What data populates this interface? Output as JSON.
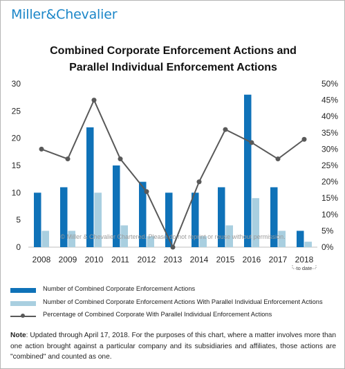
{
  "logo": {
    "name_part1": "Miller",
    "amp": "&",
    "name_part2": "Chevalier"
  },
  "title_line1": "Combined Corporate Enforcement Actions and",
  "title_line2": "Parallel Individual Enforcement Actions",
  "watermark": "© Miller & Chevalier Chartered. Please do not reprint or reuse without permission.",
  "colors": {
    "corporate": "#0f72b8",
    "parallel": "#a9cfe0",
    "percentage": "#595959",
    "logo": "#1b86c8"
  },
  "legend": {
    "corporate": "Number of Combined Corporate Enforcement Actions",
    "parallel": "Number of Combined Corporate Enforcement Actions With Parallel Individual Enforcement Actions",
    "percentage": "Percentage of Combined Corporate With Parallel Individual Enforcement Actions"
  },
  "note": {
    "label": "Note",
    "text": ": Updated through April 17, 2018. For the purposes of this chart, where a matter involves more than one action brought against a particular company and its subsidiaries and affiliates, those actions are \"combined\" and counted as one."
  },
  "chart_data": {
    "type": "bar",
    "categories": [
      "2008",
      "2009",
      "2010",
      "2011",
      "2012",
      "2013",
      "2014",
      "2015",
      "2016",
      "2017",
      "2018"
    ],
    "category_sublabels": {
      "2018": "to date"
    },
    "series": [
      {
        "name": "Number of Combined Corporate Enforcement Actions",
        "type": "bar",
        "axis": "left",
        "values": [
          10,
          11,
          22,
          15,
          12,
          10,
          10,
          11,
          28,
          11,
          3
        ]
      },
      {
        "name": "Number of Combined Corporate Enforcement Actions With Parallel Individual Enforcement Actions",
        "type": "bar",
        "axis": "left",
        "values": [
          3,
          3,
          10,
          4,
          2,
          0,
          2,
          4,
          9,
          3,
          1
        ]
      },
      {
        "name": "Percentage of Combined Corporate With Parallel Individual Enforcement Actions",
        "type": "line",
        "axis": "right",
        "values": [
          30,
          27,
          45,
          27,
          17,
          0,
          20,
          36,
          32,
          27,
          33
        ]
      }
    ],
    "ylim": [
      0,
      30
    ],
    "y_ticks": [
      "0",
      "5",
      "10",
      "15",
      "20",
      "25",
      "30"
    ],
    "y2lim": [
      0,
      50
    ],
    "y2_ticks": [
      "0%",
      "5%",
      "10%",
      "15%",
      "20%",
      "25%",
      "30%",
      "35%",
      "40%",
      "45%",
      "50%"
    ],
    "grid": false,
    "legend_position": "bottom"
  }
}
